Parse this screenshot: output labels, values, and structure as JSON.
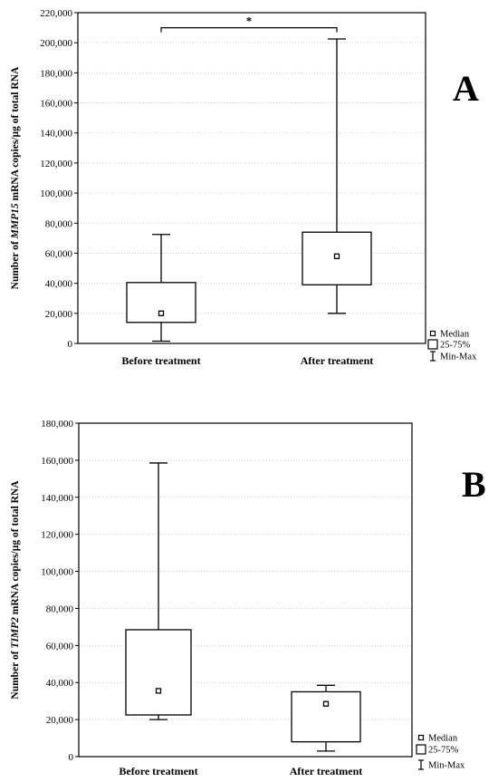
{
  "chart_data": [
    {
      "type": "box",
      "panel_label": "A",
      "ylabel_parts": [
        "Number of ",
        "MMP15",
        " mRNA copies/µg of total RNA"
      ],
      "ylim": [
        0,
        220000
      ],
      "ytick_values": [
        0,
        20000,
        40000,
        60000,
        80000,
        100000,
        120000,
        140000,
        160000,
        180000,
        200000,
        220000
      ],
      "ytick_labels": [
        "0",
        "20,000",
        "40,000",
        "60,000",
        "80,000",
        "100,000",
        "120,000",
        "140,000",
        "160,000",
        "180,000",
        "200,000",
        "220,000"
      ],
      "categories": [
        "Before treatment",
        "After treatment"
      ],
      "boxes": [
        {
          "min": 1500,
          "q1": 14000,
          "median": 20000,
          "q3": 40500,
          "max": 72500
        },
        {
          "min": 20000,
          "q1": 39000,
          "median": 58000,
          "q3": 74000,
          "max": 202500
        }
      ],
      "significance": {
        "text": "*",
        "between": [
          0,
          1
        ],
        "level": 210000
      },
      "grid": true,
      "legend": [
        "Median",
        "25-75%",
        "Min-Max"
      ],
      "legend_position": "bottom-right, outside"
    },
    {
      "type": "box",
      "panel_label": "B",
      "ylabel_parts": [
        "Number of ",
        "TIMP2",
        " mRNA copies/µg of total RNA"
      ],
      "ylim": [
        0,
        180000
      ],
      "ytick_values": [
        0,
        20000,
        40000,
        60000,
        80000,
        100000,
        120000,
        140000,
        160000,
        180000
      ],
      "ytick_labels": [
        "0",
        "20,000",
        "40,000",
        "60,000",
        "80,000",
        "100,000",
        "120,000",
        "140,000",
        "160,000",
        "180,000"
      ],
      "categories": [
        "Before treatment",
        "After treatment"
      ],
      "boxes": [
        {
          "min": 20000,
          "q1": 22500,
          "median": 35500,
          "q3": 68500,
          "max": 158500
        },
        {
          "min": 3000,
          "q1": 8000,
          "median": 28500,
          "q3": 35000,
          "max": 38500
        }
      ],
      "grid": true,
      "legend": [
        "Median",
        "25-75%",
        "Min-Max"
      ],
      "legend_position": "bottom-right, outside"
    }
  ]
}
